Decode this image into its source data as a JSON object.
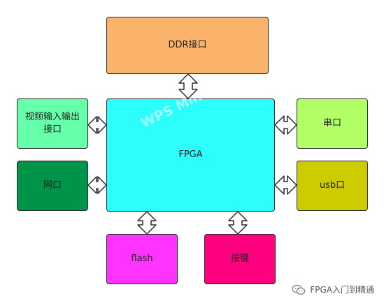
{
  "blocks": {
    "ddr": "DDR接口",
    "fpga": "FPGA",
    "video": "视频输入输出接口",
    "net": "网口",
    "uart": "串口",
    "usb": "usb口",
    "flash": "flash",
    "key": "按键"
  },
  "watermark": "WPS Mind",
  "brand": {
    "text": "FPGA入门到精通",
    "icon": "wechat-icon"
  },
  "colors": {
    "ddr": "#fbb36b",
    "fpga": "#2cfefe",
    "video": "#66ffaa",
    "net": "#009448",
    "uart": "#b2fe66",
    "usb": "#cdcc00",
    "flash": "#ff33ff",
    "key": "#ff0080"
  }
}
